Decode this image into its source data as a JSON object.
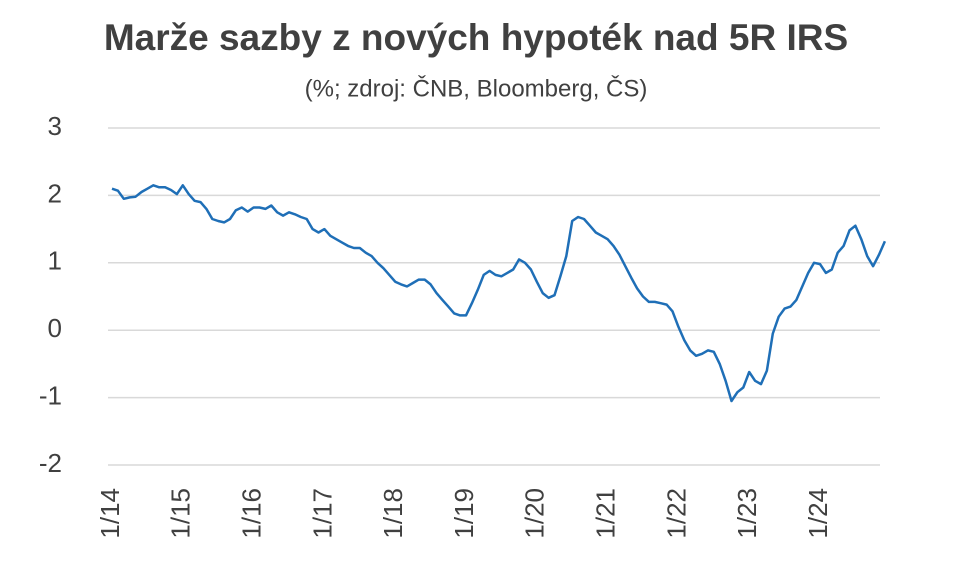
{
  "chart_data": {
    "type": "line",
    "title": "Marže sazby z nových hypoték nad 5R IRS",
    "subtitle": "(%; zdroj: ČNB, Bloomberg, ČS)",
    "categories": [
      "1/14",
      null,
      null,
      null,
      null,
      null,
      null,
      null,
      null,
      null,
      null,
      null,
      "1/15",
      null,
      null,
      null,
      null,
      null,
      null,
      null,
      null,
      null,
      null,
      null,
      "1/16",
      null,
      null,
      null,
      null,
      null,
      null,
      null,
      null,
      null,
      null,
      null,
      "1/17",
      null,
      null,
      null,
      null,
      null,
      null,
      null,
      null,
      null,
      null,
      null,
      "1/18",
      null,
      null,
      null,
      null,
      null,
      null,
      null,
      null,
      null,
      null,
      null,
      "1/19",
      null,
      null,
      null,
      null,
      null,
      null,
      null,
      null,
      null,
      null,
      null,
      "1/20",
      null,
      null,
      null,
      null,
      null,
      null,
      null,
      null,
      null,
      null,
      null,
      "1/21",
      null,
      null,
      null,
      null,
      null,
      null,
      null,
      null,
      null,
      null,
      null,
      "1/22",
      null,
      null,
      null,
      null,
      null,
      null,
      null,
      null,
      null,
      null,
      null,
      "1/23",
      null,
      null,
      null,
      null,
      null,
      null,
      null,
      null,
      null,
      null,
      null,
      "1/24",
      null,
      null,
      null,
      null,
      null,
      null,
      null,
      null,
      null,
      null,
      null
    ],
    "values": [
      2.1,
      2.07,
      1.95,
      1.97,
      1.98,
      2.05,
      2.1,
      2.15,
      2.12,
      2.12,
      2.08,
      2.02,
      2.15,
      2.02,
      1.92,
      1.9,
      1.8,
      1.65,
      1.62,
      1.6,
      1.65,
      1.78,
      1.82,
      1.76,
      1.82,
      1.82,
      1.8,
      1.85,
      1.75,
      1.7,
      1.75,
      1.72,
      1.68,
      1.65,
      1.5,
      1.45,
      1.5,
      1.4,
      1.35,
      1.3,
      1.25,
      1.22,
      1.22,
      1.15,
      1.1,
      1.0,
      0.92,
      0.82,
      0.72,
      0.68,
      0.65,
      0.7,
      0.75,
      0.75,
      0.68,
      0.55,
      0.45,
      0.35,
      0.25,
      0.22,
      0.22,
      0.4,
      0.6,
      0.82,
      0.88,
      0.82,
      0.8,
      0.85,
      0.9,
      1.05,
      1.0,
      0.9,
      0.72,
      0.55,
      0.48,
      0.52,
      0.8,
      1.1,
      1.62,
      1.68,
      1.65,
      1.55,
      1.45,
      1.4,
      1.35,
      1.25,
      1.12,
      0.95,
      0.78,
      0.62,
      0.5,
      0.42,
      0.42,
      0.4,
      0.38,
      0.28,
      0.05,
      -0.15,
      -0.3,
      -0.38,
      -0.35,
      -0.3,
      -0.32,
      -0.5,
      -0.75,
      -1.05,
      -0.92,
      -0.85,
      -0.62,
      -0.75,
      -0.8,
      -0.6,
      -0.05,
      0.2,
      0.32,
      0.35,
      0.45,
      0.65,
      0.85,
      1.0,
      0.98,
      0.85,
      0.9,
      1.15,
      1.25,
      1.48,
      1.55,
      1.35,
      1.1,
      0.95,
      1.12,
      1.32
    ],
    "color": "#1f6fb7",
    "ylim": [
      -2,
      3
    ],
    "yticks": [
      -2,
      -1,
      0,
      1,
      2,
      3
    ],
    "grid": true
  }
}
